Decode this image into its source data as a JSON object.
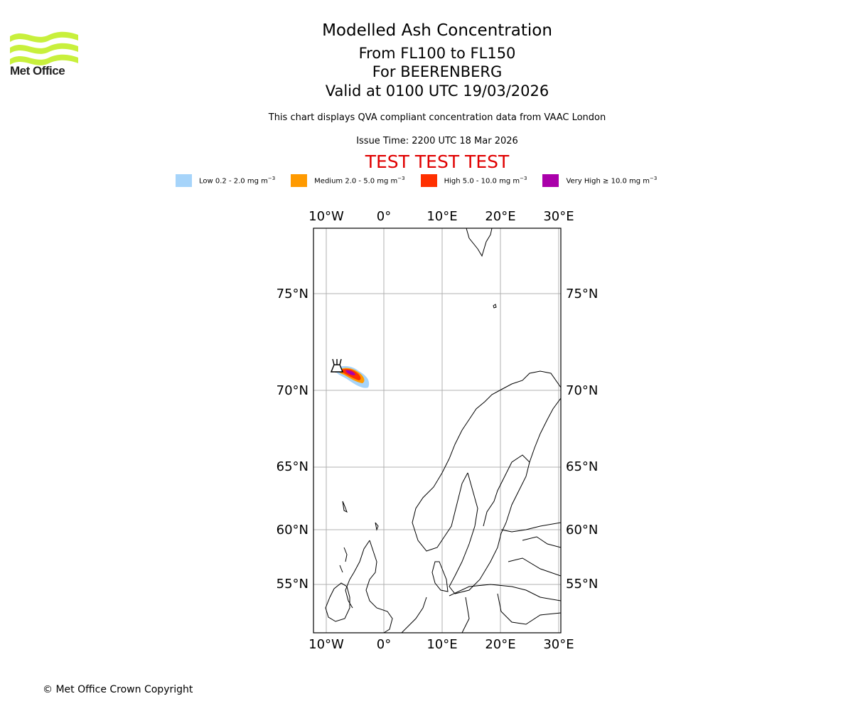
{
  "logo": {
    "text": "Met Office",
    "icon": "met-office-wave-logo",
    "color": "#c8f03c"
  },
  "titles": {
    "main": "Modelled Ash Concentration",
    "levels": "From FL100 to FL150",
    "volcano": "For BEERENBERG",
    "valid": "Valid at 0100 UTC 19/03/2026"
  },
  "description": "This chart displays QVA compliant concentration data from VAAC London",
  "issue_time": "Issue Time: 2200 UTC 18 Mar 2026",
  "test_banner": "TEST TEST TEST",
  "legend": [
    {
      "label": "Low 0.2 - 2.0 mg m",
      "unit_sup": "−3",
      "color": "#a6d4fa"
    },
    {
      "label": "Medium 2.0 - 5.0 mg m",
      "unit_sup": "−3",
      "color": "#ff9a00"
    },
    {
      "label": "High 5.0 - 10.0 mg m",
      "unit_sup": "−3",
      "color": "#ff3000"
    },
    {
      "label": "Very High ≥ 10.0 mg m",
      "unit_sup": "−3",
      "color": "#aa00aa"
    }
  ],
  "map": {
    "lon_ticks": [
      "10°W",
      "0°",
      "10°E",
      "20°E",
      "30°E"
    ],
    "lat_ticks": [
      "75°N",
      "70°N",
      "65°N",
      "60°N",
      "55°N"
    ],
    "grid": true,
    "volcano_marker": "volcano-icon"
  },
  "copyright": "© Met Office Crown Copyright"
}
